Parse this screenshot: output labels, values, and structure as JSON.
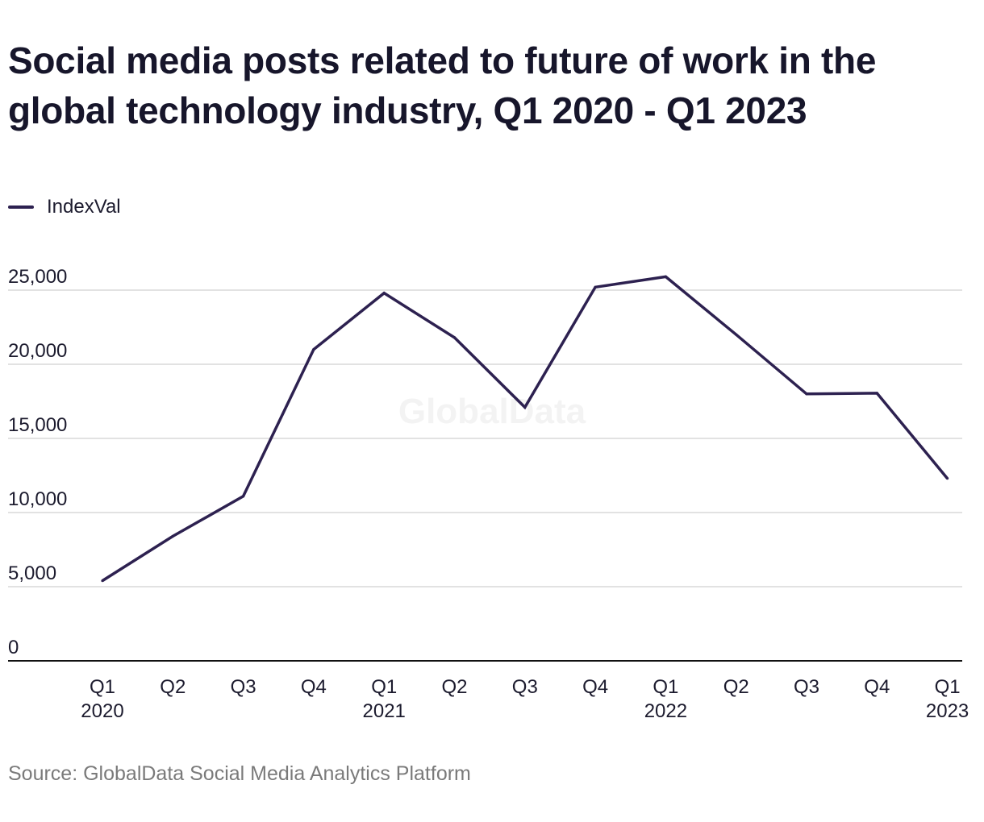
{
  "colors": {
    "series": "#2d2150",
    "grid": "#d9d9d9",
    "axis": "#111111",
    "text": "#1c1b2e",
    "source": "#7a7a7a",
    "watermark": "#f3f3f3"
  },
  "watermark": "GlobalData",
  "source": "Source: GlobalData Social Media Analytics Platform",
  "chart_data": {
    "type": "line",
    "title": "Social media posts related to future of work in the global technology industry, Q1 2020 - Q1 2023",
    "xlabel": "",
    "ylabel": "",
    "ylim": [
      0,
      25000
    ],
    "yticks": [
      0,
      5000,
      10000,
      15000,
      20000,
      25000
    ],
    "ytick_labels": [
      "0",
      "5,000",
      "10,000",
      "15,000",
      "20,000",
      "25,000"
    ],
    "grid": true,
    "legend_position": "top-left",
    "categories": [
      [
        "Q1",
        "2020"
      ],
      [
        "Q2",
        ""
      ],
      [
        "Q3",
        ""
      ],
      [
        "Q4",
        ""
      ],
      [
        "Q1",
        "2021"
      ],
      [
        "Q2",
        ""
      ],
      [
        "Q3",
        ""
      ],
      [
        "Q4",
        ""
      ],
      [
        "Q1",
        "2022"
      ],
      [
        "Q2",
        ""
      ],
      [
        "Q3",
        ""
      ],
      [
        "Q4",
        ""
      ],
      [
        "Q1",
        "2023"
      ]
    ],
    "series": [
      {
        "name": "IndexVal",
        "values": [
          5400,
          8400,
          11100,
          21000,
          24800,
          21800,
          17100,
          25200,
          25900,
          22000,
          18000,
          18050,
          12300
        ]
      }
    ]
  }
}
